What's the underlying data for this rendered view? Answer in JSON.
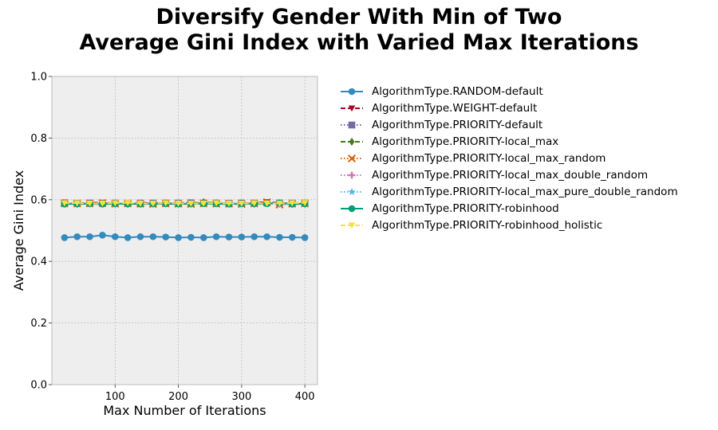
{
  "chart_data": {
    "type": "line",
    "title_line1": "Diversify Gender With Min of Two",
    "title_line2": "Average Gini Index with Varied Max Iterations",
    "xlabel": "Max Number of Iterations",
    "ylabel": "Average Gini Index",
    "xlim": [
      0,
      420
    ],
    "ylim": [
      0,
      1.0
    ],
    "xticks": [
      100,
      200,
      300,
      400
    ],
    "xtick_labels": [
      "100",
      "200",
      "300",
      "400"
    ],
    "yticks": [
      0,
      0.2,
      0.4,
      0.6,
      0.8,
      1.0
    ],
    "ytick_labels": [
      "0.0",
      "0.2",
      "0.4",
      "0.6",
      "0.8",
      "1.0"
    ],
    "grid": true,
    "legend_position": "outside-right",
    "x": [
      20,
      40,
      60,
      80,
      100,
      120,
      140,
      160,
      180,
      200,
      220,
      240,
      260,
      280,
      300,
      320,
      340,
      360,
      380,
      400
    ],
    "series": [
      {
        "name": "AlgorithmType.RANDOM-default",
        "color": "#348abd",
        "marker": "circle",
        "dash": "solid",
        "values": [
          0.477,
          0.48,
          0.48,
          0.485,
          0.48,
          0.477,
          0.48,
          0.48,
          0.479,
          0.477,
          0.478,
          0.477,
          0.48,
          0.479,
          0.479,
          0.48,
          0.48,
          0.478,
          0.478,
          0.477
        ]
      },
      {
        "name": "AlgorithmType.WEIGHT-default",
        "color": "#a60628",
        "marker": "triangle-down",
        "dash": "dashed",
        "values": [
          0.59,
          0.589,
          0.59,
          0.59,
          0.589,
          0.588,
          0.59,
          0.589,
          0.589,
          0.589,
          0.59,
          0.589,
          0.589,
          0.588,
          0.589,
          0.589,
          0.593,
          0.589,
          0.589,
          0.59
        ]
      },
      {
        "name": "AlgorithmType.PRIORITY-default",
        "color": "#7a68a6",
        "marker": "square",
        "dash": "dotted",
        "values": [
          0.59,
          0.588,
          0.589,
          0.589,
          0.589,
          0.588,
          0.589,
          0.589,
          0.589,
          0.589,
          0.59,
          0.589,
          0.589,
          0.588,
          0.589,
          0.589,
          0.59,
          0.589,
          0.589,
          0.589
        ]
      },
      {
        "name": "AlgorithmType.PRIORITY-local_max",
        "color": "#467821",
        "marker": "diamond",
        "dash": "dashed",
        "values": [
          0.587,
          0.586,
          0.588,
          0.587,
          0.587,
          0.586,
          0.587,
          0.587,
          0.588,
          0.588,
          0.587,
          0.592,
          0.589,
          0.587,
          0.588,
          0.587,
          0.589,
          0.587,
          0.586,
          0.587
        ]
      },
      {
        "name": "AlgorithmType.PRIORITY-local_max_random",
        "color": "#d55e00",
        "marker": "x",
        "dash": "dotted",
        "values": [
          0.588,
          0.588,
          0.588,
          0.589,
          0.587,
          0.588,
          0.587,
          0.586,
          0.588,
          0.587,
          0.586,
          0.588,
          0.587,
          0.587,
          0.586,
          0.588,
          0.592,
          0.584,
          0.587,
          0.588
        ]
      },
      {
        "name": "AlgorithmType.PRIORITY-local_max_double_random",
        "color": "#cc79a7",
        "marker": "plus",
        "dash": "dotted",
        "values": [
          0.588,
          0.588,
          0.588,
          0.588,
          0.587,
          0.588,
          0.588,
          0.587,
          0.588,
          0.588,
          0.587,
          0.588,
          0.588,
          0.587,
          0.587,
          0.588,
          0.588,
          0.587,
          0.588,
          0.588
        ]
      },
      {
        "name": "AlgorithmType.PRIORITY-local_max_pure_double_random",
        "color": "#56b4e9",
        "marker": "star",
        "dash": "dotted",
        "values": [
          0.587,
          0.587,
          0.588,
          0.587,
          0.587,
          0.587,
          0.588,
          0.587,
          0.587,
          0.588,
          0.587,
          0.587,
          0.588,
          0.587,
          0.587,
          0.588,
          0.587,
          0.587,
          0.587,
          0.588
        ]
      },
      {
        "name": "AlgorithmType.PRIORITY-robinhood",
        "color": "#009e73",
        "marker": "circle",
        "dash": "solid",
        "values": [
          0.586,
          0.587,
          0.587,
          0.586,
          0.587,
          0.587,
          0.586,
          0.587,
          0.587,
          0.586,
          0.587,
          0.587,
          0.587,
          0.586,
          0.587,
          0.587,
          0.587,
          0.59,
          0.586,
          0.587
        ]
      },
      {
        "name": "AlgorithmType.PRIORITY-robinhood_holistic",
        "color": "#f0e442",
        "marker": "triangle-down",
        "dash": "dashed",
        "values": [
          0.589,
          0.589,
          0.588,
          0.588,
          0.589,
          0.59,
          0.588,
          0.588,
          0.589,
          0.588,
          0.588,
          0.588,
          0.589,
          0.588,
          0.588,
          0.589,
          0.588,
          0.588,
          0.589,
          0.59
        ]
      }
    ]
  }
}
